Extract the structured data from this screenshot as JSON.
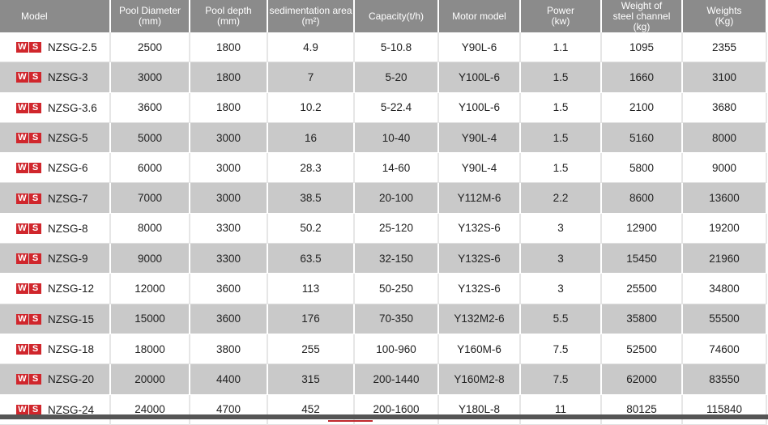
{
  "table": {
    "headers": [
      [
        "Model"
      ],
      [
        "Pool Diameter",
        "(mm)"
      ],
      [
        "Pool depth",
        "(mm)"
      ],
      [
        "sedimentation area",
        "(m²)"
      ],
      [
        "Capacity(t/h)"
      ],
      [
        "Motor model"
      ],
      [
        "Power",
        "(kw)"
      ],
      [
        "Weight of",
        "steel channel",
        "(kg)"
      ],
      [
        "Weights",
        "(Kg)"
      ]
    ],
    "logo": [
      "W",
      "S"
    ],
    "rows": [
      [
        "NZSG-2.5",
        2500,
        1800,
        4.9,
        "5-10.8",
        "Y90L-6",
        1.1,
        1095,
        2355
      ],
      [
        "NZSG-3",
        3000,
        1800,
        7,
        "5-20",
        "Y100L-6",
        1.5,
        1660,
        3100
      ],
      [
        "NZSG-3.6",
        3600,
        1800,
        10.2,
        "5-22.4",
        "Y100L-6",
        1.5,
        2100,
        3680
      ],
      [
        "NZSG-5",
        5000,
        3000,
        16,
        "10-40",
        "Y90L-4",
        1.5,
        5160,
        8000
      ],
      [
        "NZSG-6",
        6000,
        3000,
        28.3,
        "14-60",
        "Y90L-4",
        1.5,
        5800,
        9000
      ],
      [
        "NZSG-7",
        7000,
        3000,
        38.5,
        "20-100",
        "Y112M-6",
        2.2,
        8600,
        13600
      ],
      [
        "NZSG-8",
        8000,
        3300,
        50.2,
        "25-120",
        "Y132S-6",
        3,
        12900,
        19200
      ],
      [
        "NZSG-9",
        9000,
        3300,
        63.5,
        "32-150",
        "Y132S-6",
        3,
        15450,
        21960
      ],
      [
        "NZSG-12",
        12000,
        3600,
        113,
        "50-250",
        "Y132S-6",
        3,
        25500,
        34800
      ],
      [
        "NZSG-15",
        15000,
        3600,
        176,
        "70-350",
        "Y132M2-6",
        5.5,
        35800,
        55500
      ],
      [
        "NZSG-18",
        18000,
        3800,
        255,
        "100-960",
        "Y160M-6",
        7.5,
        52500,
        74600
      ],
      [
        "NZSG-20",
        20000,
        4400,
        315,
        "200-1440",
        "Y160M2-8",
        7.5,
        62000,
        83550
      ],
      [
        "NZSG-24",
        24000,
        4700,
        452,
        "200-1600",
        "Y180L-8",
        11,
        80125,
        115840
      ]
    ]
  }
}
